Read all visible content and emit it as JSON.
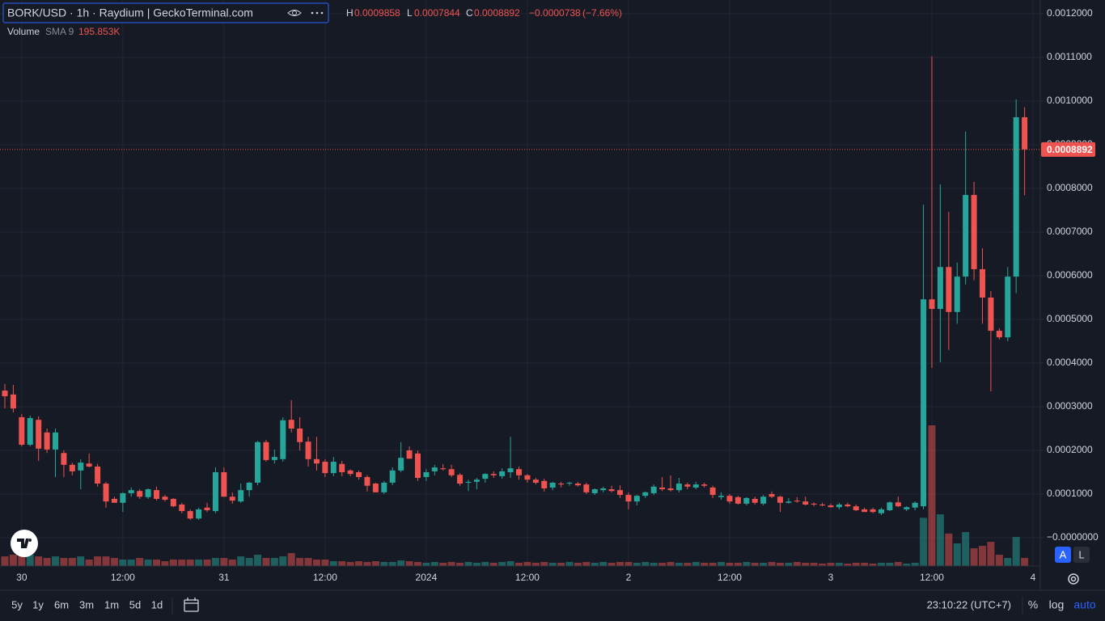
{
  "chart_data": {
    "type": "candlestick",
    "title": "BORK/USD · 1h · Raydium | GeckoTerminal.com",
    "legend_keys": [
      "H",
      "L",
      "C"
    ],
    "change": {
      "value": -7.38e-05,
      "label": "−0.0000738"
    },
    "change_percent": {
      "value": -7.66,
      "label": "(−7.66%)"
    },
    "volume_legend": {
      "name": "Volume",
      "indicator": "SMA 9",
      "sma": {
        "value": 195853,
        "label": "195.853K"
      }
    },
    "up_color": "#26a69a",
    "down_color": "#ef5350",
    "grid": true,
    "ylim": [
      -6.48e-05,
      0.0012315
    ],
    "yticks": [
      {
        "value": 0.0012,
        "label": "0.0012000"
      },
      {
        "value": 0.0011,
        "label": "0.0011000"
      },
      {
        "value": 0.001,
        "label": "0.0010000"
      },
      {
        "value": 0.0009,
        "label": "0.0009000"
      },
      {
        "value": 0.0008,
        "label": "0.0008000"
      },
      {
        "value": 0.0007,
        "label": "0.0007000"
      },
      {
        "value": 0.0006,
        "label": "0.0006000"
      },
      {
        "value": 0.0005,
        "label": "0.0005000"
      },
      {
        "value": 0.0004,
        "label": "0.0004000"
      },
      {
        "value": 0.0003,
        "label": "0.0003000"
      },
      {
        "value": 0.0002,
        "label": "0.0002000"
      },
      {
        "value": 0.0001,
        "label": "0.0001000"
      },
      {
        "value": 0,
        "label": "−0.0000000"
      }
    ],
    "current_price": 0.0008892,
    "categories": [
      null,
      null,
      "30",
      null,
      null,
      null,
      null,
      null,
      null,
      null,
      null,
      null,
      null,
      null,
      "12:00",
      null,
      null,
      null,
      null,
      null,
      null,
      null,
      null,
      null,
      null,
      null,
      "31",
      null,
      null,
      null,
      null,
      null,
      null,
      null,
      null,
      null,
      null,
      null,
      "12:00",
      null,
      null,
      null,
      null,
      null,
      null,
      null,
      null,
      null,
      null,
      null,
      "2024",
      null,
      null,
      null,
      null,
      null,
      null,
      null,
      null,
      null,
      null,
      null,
      "12:00",
      null,
      null,
      null,
      null,
      null,
      null,
      null,
      null,
      null,
      null,
      null,
      "2",
      null,
      null,
      null,
      null,
      null,
      null,
      null,
      null,
      null,
      null,
      null,
      "12:00",
      null,
      null,
      null,
      null,
      null,
      null,
      null,
      null,
      null,
      null,
      null,
      "3",
      null,
      null,
      null,
      null,
      null,
      null,
      null,
      null,
      null,
      null,
      null,
      "12:00",
      null,
      null,
      null,
      null,
      null,
      null,
      null,
      null,
      null,
      null,
      null,
      "4"
    ],
    "open": [
      0.000337,
      0.000328,
      0.000276,
      0.000213,
      0.00027,
      0.000241,
      0.000202,
      0.000194,
      0.000167,
      0.000154,
      0.00017,
      0.000163,
      0.000124,
      8.9e-05,
      8e-05,
      0.000102,
      0.000107,
      9.3e-05,
      0.000109,
      9.4e-05,
      8.9e-05,
      7.6e-05,
      6.1e-05,
      4.4e-05,
      6.9e-05,
      6.1e-05,
      0.00015,
      9.4e-05,
      8.3e-05,
      0.000109,
      0.000126,
      0.000219,
      0.000178,
      0.00018,
      0.00027,
      0.00025,
      0.00022,
      0.00018,
      0.000174,
      0.000148,
      0.000169,
      0.000154,
      0.00015,
      0.000139,
      0.000124,
      0.000104,
      0.000126,
      0.000154,
      0.0002,
      0.000193,
      0.000139,
      0.000152,
      0.000159,
      0.000157,
      0.000144,
      0.000126,
      0.000128,
      0.000135,
      0.000146,
      0.000141,
      0.00015,
      0.000157,
      0.000143,
      0.000133,
      0.00013,
      0.000115,
      0.000124,
      0.000124,
      0.000124,
      0.000122,
      0.000102,
      0.000109,
      0.000111,
      0.000109,
      9.8e-05,
      8.3e-05,
      9.6e-05,
      0.000102,
      0.000115,
      0.000113,
      0.000109,
      0.000122,
      0.000115,
      0.000122,
      0.000115,
      9.3e-05,
      9.6e-05,
      9.3e-05,
      7.8e-05,
      8.9e-05,
      7.8e-05,
      0.0001,
      9.4e-05,
      8e-05,
      8.5e-05,
      8.3e-05,
      7.8e-05,
      7.6e-05,
      7.4e-05,
      7e-05,
      7.6e-05,
      7.2e-05,
      6.5e-05,
      6.5e-05,
      5.6e-05,
      6.3e-05,
      8.1e-05,
      6.5e-05,
      6.9e-05,
      7.2e-05,
      0.000546,
      0.000524,
      0.00062,
      0.000517,
      0.000598,
      0.000785,
      0.000615,
      0.00055,
      0.000474,
      0.000459,
      0.000598,
      0.000963,
      null
    ],
    "high": [
      0.000352,
      0.00035,
      0.000283,
      0.00028,
      0.000278,
      0.00025,
      0.00025,
      0.0002,
      0.000172,
      0.00018,
      0.000193,
      0.000169,
      0.000128,
      9.4e-05,
      0.000104,
      0.000115,
      0.000111,
      0.000113,
      0.000117,
      9.8e-05,
      9.1e-05,
      8e-05,
      6.5e-05,
      6.9e-05,
      8e-05,
      0.000161,
      0.000161,
      0.000104,
      0.000124,
      0.000128,
      0.000222,
      0.000224,
      0.000202,
      0.000276,
      0.000315,
      0.000276,
      0.000231,
      0.000231,
      0.00018,
      0.000185,
      0.000176,
      0.000157,
      0.000154,
      0.000143,
      0.000126,
      0.00013,
      0.000161,
      0.000219,
      0.000209,
      0.0002,
      0.000157,
      0.000167,
      0.000169,
      0.000167,
      0.000148,
      0.000133,
      0.000137,
      0.000148,
      0.000152,
      0.000159,
      0.000231,
      0.000163,
      0.000146,
      0.000137,
      0.000135,
      0.000128,
      0.000128,
      0.000128,
      0.000128,
      0.000126,
      0.000113,
      0.000117,
      0.000119,
      0.00012,
      0.000104,
      9.8e-05,
      0.000106,
      0.000122,
      0.000139,
      0.000143,
      0.000137,
      0.000126,
      0.000128,
      0.000126,
      0.000119,
      0.000104,
      0.0001,
      9.6e-05,
      9.3e-05,
      9.4e-05,
      9.8e-05,
      0.000106,
      9.6e-05,
      9.1e-05,
      9.3e-05,
      9.4e-05,
      8.1e-05,
      8e-05,
      7.8e-05,
      8e-05,
      8e-05,
      7.6e-05,
      6.9e-05,
      6.9e-05,
      6.9e-05,
      8.3e-05,
      9.4e-05,
      7.2e-05,
      8.3e-05,
      0.000763,
      0.001102,
      0.000809,
      0.000746,
      0.00063,
      0.00093,
      0.000815,
      0.000663,
      0.000565,
      0.00048,
      0.00062,
      0.001004,
      0.0009858,
      null
    ],
    "low": [
      0.000296,
      0.000287,
      0.000209,
      0.000209,
      0.000176,
      0.000194,
      0.000139,
      0.000139,
      0.000143,
      0.000111,
      0.000161,
      0.000117,
      6.9e-05,
      8e-05,
      5.9e-05,
      9.4e-05,
      8.9e-05,
      8.9e-05,
      8.5e-05,
      8.3e-05,
      7e-05,
      5.6e-05,
      4.1e-05,
      4.1e-05,
      5.9e-05,
      5.6e-05,
      9.4e-05,
      7.8e-05,
      8e-05,
      9.4e-05,
      0.00012,
      0.000174,
      0.00017,
      0.000174,
      0.000241,
      0.0002,
      0.000163,
      0.000154,
      0.000139,
      0.000141,
      0.000141,
      0.000141,
      0.000133,
      0.000106,
      0.000104,
      0.0001,
      0.00012,
      0.00015,
      0.000181,
      0.00013,
      0.00013,
      0.000143,
      0.000154,
      0.000139,
      0.000119,
      0.000107,
      0.000111,
      0.000126,
      0.000137,
      0.000135,
      0.000137,
      0.000133,
      0.000126,
      0.000122,
      0.000106,
      0.000109,
      0.000115,
      0.000119,
      0.000117,
      0.0001,
      9.8e-05,
      0.000104,
      0.000104,
      9.1e-05,
      6.5e-05,
      7.4e-05,
      9.1e-05,
      9.8e-05,
      0.000107,
      0.000106,
      0.000104,
      0.000111,
      0.000111,
      0.000115,
      9.1e-05,
      8.7e-05,
      7.8e-05,
      7.6e-05,
      7.4e-05,
      7.6e-05,
      7.4e-05,
      9.1e-05,
      5.9e-05,
      7.8e-05,
      8e-05,
      7.4e-05,
      7.2e-05,
      7.2e-05,
      6.9e-05,
      6.5e-05,
      7e-05,
      6.1e-05,
      5.9e-05,
      5.6e-05,
      5.2e-05,
      6.1e-05,
      7e-05,
      6.1e-05,
      6.3e-05,
      6.5e-05,
      0.000389,
      0.000402,
      0.00043,
      0.00049,
      0.00058,
      0.00059,
      0.00049,
      0.000335,
      0.000454,
      0.00045,
      0.00056,
      0.0007844,
      null
    ],
    "close": [
      0.000324,
      0.000296,
      0.000213,
      0.000274,
      0.000204,
      0.000202,
      0.000241,
      0.000167,
      0.000152,
      0.000172,
      0.000163,
      0.000124,
      8.3e-05,
      8e-05,
      0.000102,
      0.000109,
      9.4e-05,
      0.000111,
      8.9e-05,
      8.7e-05,
      7.2e-05,
      6.1e-05,
      4.4e-05,
      6.5e-05,
      6.3e-05,
      0.00015,
      9.4e-05,
      8.5e-05,
      0.000109,
      0.000126,
      0.000219,
      0.000178,
      0.000185,
      0.000269,
      0.00025,
      0.000219,
      0.00018,
      0.00017,
      0.000148,
      0.000174,
      0.00015,
      0.000146,
      0.000139,
      0.000119,
      0.000104,
      0.000126,
      0.000154,
      0.000183,
      0.000181,
      0.000137,
      0.00015,
      0.000161,
      0.000157,
      0.000143,
      0.000124,
      0.000128,
      0.000133,
      0.000146,
      0.000143,
      0.000152,
      0.000159,
      0.000143,
      0.000133,
      0.000126,
      0.000113,
      0.000126,
      0.000122,
      0.000126,
      0.00012,
      0.000104,
      0.000111,
      0.000113,
      0.000107,
      9.8e-05,
      8.3e-05,
      9.6e-05,
      0.000104,
      0.000117,
      0.000111,
      0.000109,
      0.000124,
      0.000117,
      0.000122,
      0.000119,
      9.8e-05,
      9.6e-05,
      8.3e-05,
      7.8e-05,
      9.1e-05,
      8e-05,
      9.4e-05,
      9.4e-05,
      8e-05,
      8.3e-05,
      8.3e-05,
      7.6e-05,
      7.6e-05,
      7.4e-05,
      7e-05,
      7.6e-05,
      7.2e-05,
      6.3e-05,
      5.9e-05,
      5.9e-05,
      6.5e-05,
      8.1e-05,
      7.2e-05,
      7e-05,
      8e-05,
      0.000546,
      0.000524,
      0.00062,
      0.000517,
      0.000598,
      0.000785,
      0.000615,
      0.00055,
      0.000474,
      0.000459,
      0.000598,
      0.000963,
      0.0008892,
      null
    ],
    "volume": [
      98000,
      115000,
      98000,
      115000,
      98000,
      82000,
      98000,
      82000,
      82000,
      98000,
      66000,
      98000,
      98000,
      82000,
      66000,
      66000,
      82000,
      66000,
      66000,
      49000,
      66000,
      66000,
      66000,
      66000,
      66000,
      82000,
      82000,
      66000,
      98000,
      82000,
      115000,
      82000,
      82000,
      98000,
      131000,
      82000,
      82000,
      66000,
      66000,
      49000,
      49000,
      41000,
      49000,
      41000,
      49000,
      41000,
      41000,
      57000,
      49000,
      41000,
      33000,
      41000,
      33000,
      41000,
      33000,
      41000,
      33000,
      41000,
      33000,
      41000,
      49000,
      33000,
      41000,
      33000,
      41000,
      33000,
      33000,
      41000,
      33000,
      41000,
      33000,
      41000,
      33000,
      41000,
      41000,
      33000,
      41000,
      33000,
      33000,
      41000,
      33000,
      33000,
      41000,
      33000,
      33000,
      41000,
      33000,
      33000,
      41000,
      33000,
      33000,
      41000,
      33000,
      33000,
      41000,
      33000,
      33000,
      25000,
      33000,
      33000,
      25000,
      33000,
      33000,
      25000,
      33000,
      33000,
      41000,
      25000,
      33000,
      490000,
      1430000,
      525000,
      330000,
      230000,
      345000,
      180000,
      205000,
      246000,
      115000,
      82000,
      295000,
      82000,
      null
    ]
  },
  "toolbar": {
    "ranges": [
      "5y",
      "1y",
      "6m",
      "3m",
      "1m",
      "5d",
      "1d"
    ],
    "time": "23:10:22 (UTC+7)",
    "options": [
      "%",
      "log",
      "auto"
    ]
  },
  "price_scale_buttons": [
    "A",
    "L"
  ]
}
